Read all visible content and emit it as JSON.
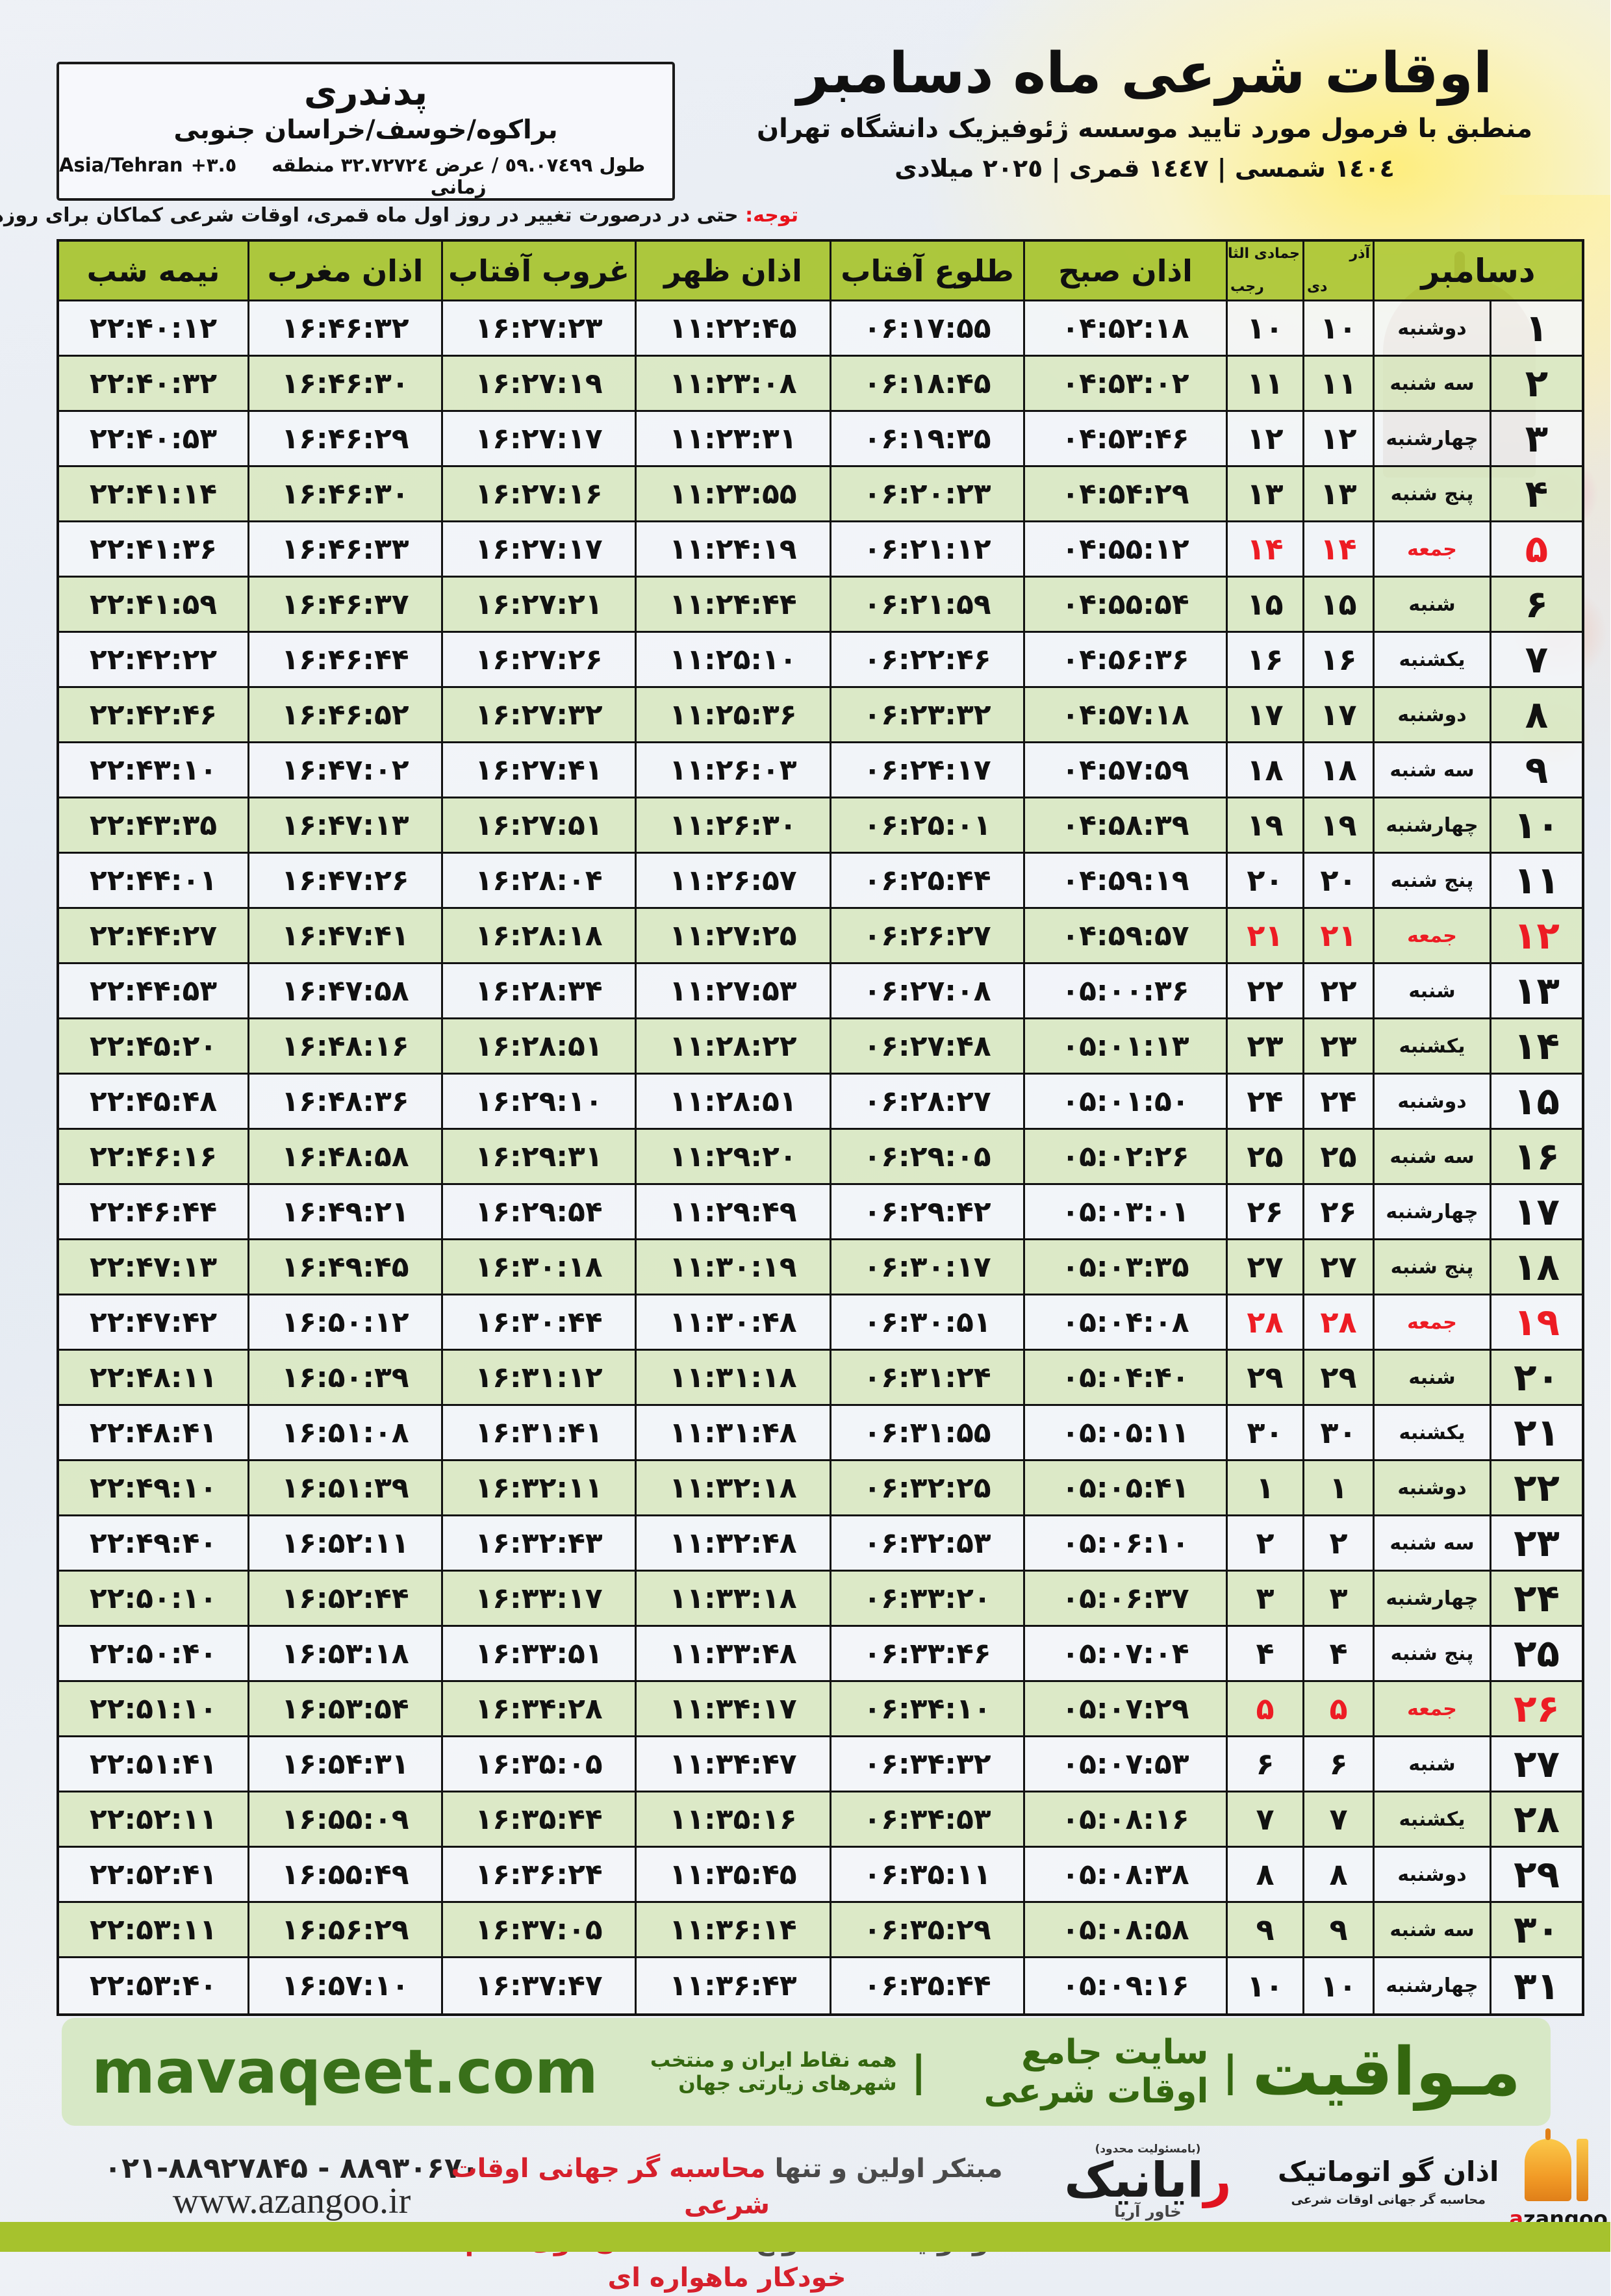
{
  "location": {
    "name": "پدندری",
    "region": "براکوه/خوسف/خراسان جنوبی",
    "coords": "طول ٥٩.٠٧٤٩٩ / عرض ٣٢.٧٢٧٢٤ منطقه زمانی",
    "tz_offset": "+٣.٥",
    "tz_name": "Asia/Tehran"
  },
  "title": {
    "main": "اوقات شرعی ماه دسامبر",
    "subtitle": "منطبق با فرمول مورد تایید موسسه ژئوفیزیک دانشگاه تهران",
    "years": "١٤٠٤ شمسی | ١٤٤٧ قمری | ٢٠٢٥ میلادی"
  },
  "notice": {
    "prefix": "توجه:",
    "text": " حتی در درصورت تغییر در روز اول ماه قمری، اوقات شرعی کماکان برای روزهای شمسی و میلادی معتبر است."
  },
  "table": {
    "columns": {
      "month": "دسامبر",
      "solar": {
        "top": "آذر",
        "bottom": "دی"
      },
      "lunar": {
        "top": "جمادی الثانی",
        "bottom": "رجب"
      },
      "sobh": "اذان صبح",
      "tolu": "طلوع آفتاب",
      "zohr": "اذان ظهر",
      "ghorub": "غروب آفتاب",
      "maghreb": "اذان مغرب",
      "nime": "نیمه شب"
    },
    "rows": [
      {
        "d": "۱",
        "wd": "دوشنبه",
        "solar": "۱۰",
        "lunar": "۱۰",
        "sobh": "۰۴:۵۲:۱۸",
        "tolu": "۰۶:۱۷:۵۵",
        "zohr": "۱۱:۲۲:۴۵",
        "ghorub": "۱۶:۲۷:۲۳",
        "maghreb": "۱۶:۴۶:۳۲",
        "nime": "۲۲:۴۰:۱۲",
        "fri": false
      },
      {
        "d": "۲",
        "wd": "سه شنبه",
        "solar": "۱۱",
        "lunar": "۱۱",
        "sobh": "۰۴:۵۳:۰۲",
        "tolu": "۰۶:۱۸:۴۵",
        "zohr": "۱۱:۲۳:۰۸",
        "ghorub": "۱۶:۲۷:۱۹",
        "maghreb": "۱۶:۴۶:۳۰",
        "nime": "۲۲:۴۰:۳۲",
        "fri": false
      },
      {
        "d": "۳",
        "wd": "چهارشنبه",
        "solar": "۱۲",
        "lunar": "۱۲",
        "sobh": "۰۴:۵۳:۴۶",
        "tolu": "۰۶:۱۹:۳۵",
        "zohr": "۱۱:۲۳:۳۱",
        "ghorub": "۱۶:۲۷:۱۷",
        "maghreb": "۱۶:۴۶:۲۹",
        "nime": "۲۲:۴۰:۵۳",
        "fri": false
      },
      {
        "d": "۴",
        "wd": "پنج شنبه",
        "solar": "۱۳",
        "lunar": "۱۳",
        "sobh": "۰۴:۵۴:۲۹",
        "tolu": "۰۶:۲۰:۲۳",
        "zohr": "۱۱:۲۳:۵۵",
        "ghorub": "۱۶:۲۷:۱۶",
        "maghreb": "۱۶:۴۶:۳۰",
        "nime": "۲۲:۴۱:۱۴",
        "fri": false
      },
      {
        "d": "۵",
        "wd": "جمعه",
        "solar": "۱۴",
        "lunar": "۱۴",
        "sobh": "۰۴:۵۵:۱۲",
        "tolu": "۰۶:۲۱:۱۲",
        "zohr": "۱۱:۲۴:۱۹",
        "ghorub": "۱۶:۲۷:۱۷",
        "maghreb": "۱۶:۴۶:۳۳",
        "nime": "۲۲:۴۱:۳۶",
        "fri": true
      },
      {
        "d": "۶",
        "wd": "شنبه",
        "solar": "۱۵",
        "lunar": "۱۵",
        "sobh": "۰۴:۵۵:۵۴",
        "tolu": "۰۶:۲۱:۵۹",
        "zohr": "۱۱:۲۴:۴۴",
        "ghorub": "۱۶:۲۷:۲۱",
        "maghreb": "۱۶:۴۶:۳۷",
        "nime": "۲۲:۴۱:۵۹",
        "fri": false
      },
      {
        "d": "۷",
        "wd": "یکشنبه",
        "solar": "۱۶",
        "lunar": "۱۶",
        "sobh": "۰۴:۵۶:۳۶",
        "tolu": "۰۶:۲۲:۴۶",
        "zohr": "۱۱:۲۵:۱۰",
        "ghorub": "۱۶:۲۷:۲۶",
        "maghreb": "۱۶:۴۶:۴۴",
        "nime": "۲۲:۴۲:۲۲",
        "fri": false
      },
      {
        "d": "۸",
        "wd": "دوشنبه",
        "solar": "۱۷",
        "lunar": "۱۷",
        "sobh": "۰۴:۵۷:۱۸",
        "tolu": "۰۶:۲۳:۳۲",
        "zohr": "۱۱:۲۵:۳۶",
        "ghorub": "۱۶:۲۷:۳۲",
        "maghreb": "۱۶:۴۶:۵۲",
        "nime": "۲۲:۴۲:۴۶",
        "fri": false
      },
      {
        "d": "۹",
        "wd": "سه شنبه",
        "solar": "۱۸",
        "lunar": "۱۸",
        "sobh": "۰۴:۵۷:۵۹",
        "tolu": "۰۶:۲۴:۱۷",
        "zohr": "۱۱:۲۶:۰۳",
        "ghorub": "۱۶:۲۷:۴۱",
        "maghreb": "۱۶:۴۷:۰۲",
        "nime": "۲۲:۴۳:۱۰",
        "fri": false
      },
      {
        "d": "۱۰",
        "wd": "چهارشنبه",
        "solar": "۱۹",
        "lunar": "۱۹",
        "sobh": "۰۴:۵۸:۳۹",
        "tolu": "۰۶:۲۵:۰۱",
        "zohr": "۱۱:۲۶:۳۰",
        "ghorub": "۱۶:۲۷:۵۱",
        "maghreb": "۱۶:۴۷:۱۳",
        "nime": "۲۲:۴۳:۳۵",
        "fri": false
      },
      {
        "d": "۱۱",
        "wd": "پنج شنبه",
        "solar": "۲۰",
        "lunar": "۲۰",
        "sobh": "۰۴:۵۹:۱۹",
        "tolu": "۰۶:۲۵:۴۴",
        "zohr": "۱۱:۲۶:۵۷",
        "ghorub": "۱۶:۲۸:۰۴",
        "maghreb": "۱۶:۴۷:۲۶",
        "nime": "۲۲:۴۴:۰۱",
        "fri": false
      },
      {
        "d": "۱۲",
        "wd": "جمعه",
        "solar": "۲۱",
        "lunar": "۲۱",
        "sobh": "۰۴:۵۹:۵۷",
        "tolu": "۰۶:۲۶:۲۷",
        "zohr": "۱۱:۲۷:۲۵",
        "ghorub": "۱۶:۲۸:۱۸",
        "maghreb": "۱۶:۴۷:۴۱",
        "nime": "۲۲:۴۴:۲۷",
        "fri": true
      },
      {
        "d": "۱۳",
        "wd": "شنبه",
        "solar": "۲۲",
        "lunar": "۲۲",
        "sobh": "۰۵:۰۰:۳۶",
        "tolu": "۰۶:۲۷:۰۸",
        "zohr": "۱۱:۲۷:۵۳",
        "ghorub": "۱۶:۲۸:۳۴",
        "maghreb": "۱۶:۴۷:۵۸",
        "nime": "۲۲:۴۴:۵۳",
        "fri": false
      },
      {
        "d": "۱۴",
        "wd": "یکشنبه",
        "solar": "۲۳",
        "lunar": "۲۳",
        "sobh": "۰۵:۰۱:۱۳",
        "tolu": "۰۶:۲۷:۴۸",
        "zohr": "۱۱:۲۸:۲۲",
        "ghorub": "۱۶:۲۸:۵۱",
        "maghreb": "۱۶:۴۸:۱۶",
        "nime": "۲۲:۴۵:۲۰",
        "fri": false
      },
      {
        "d": "۱۵",
        "wd": "دوشنبه",
        "solar": "۲۴",
        "lunar": "۲۴",
        "sobh": "۰۵:۰۱:۵۰",
        "tolu": "۰۶:۲۸:۲۷",
        "zohr": "۱۱:۲۸:۵۱",
        "ghorub": "۱۶:۲۹:۱۰",
        "maghreb": "۱۶:۴۸:۳۶",
        "nime": "۲۲:۴۵:۴۸",
        "fri": false
      },
      {
        "d": "۱۶",
        "wd": "سه شنبه",
        "solar": "۲۵",
        "lunar": "۲۵",
        "sobh": "۰۵:۰۲:۲۶",
        "tolu": "۰۶:۲۹:۰۵",
        "zohr": "۱۱:۲۹:۲۰",
        "ghorub": "۱۶:۲۹:۳۱",
        "maghreb": "۱۶:۴۸:۵۸",
        "nime": "۲۲:۴۶:۱۶",
        "fri": false
      },
      {
        "d": "۱۷",
        "wd": "چهارشنبه",
        "solar": "۲۶",
        "lunar": "۲۶",
        "sobh": "۰۵:۰۳:۰۱",
        "tolu": "۰۶:۲۹:۴۲",
        "zohr": "۱۱:۲۹:۴۹",
        "ghorub": "۱۶:۲۹:۵۴",
        "maghreb": "۱۶:۴۹:۲۱",
        "nime": "۲۲:۴۶:۴۴",
        "fri": false
      },
      {
        "d": "۱۸",
        "wd": "پنج شنبه",
        "solar": "۲۷",
        "lunar": "۲۷",
        "sobh": "۰۵:۰۳:۳۵",
        "tolu": "۰۶:۳۰:۱۷",
        "zohr": "۱۱:۳۰:۱۹",
        "ghorub": "۱۶:۳۰:۱۸",
        "maghreb": "۱۶:۴۹:۴۵",
        "nime": "۲۲:۴۷:۱۳",
        "fri": false
      },
      {
        "d": "۱۹",
        "wd": "جمعه",
        "solar": "۲۸",
        "lunar": "۲۸",
        "sobh": "۰۵:۰۴:۰۸",
        "tolu": "۰۶:۳۰:۵۱",
        "zohr": "۱۱:۳۰:۴۸",
        "ghorub": "۱۶:۳۰:۴۴",
        "maghreb": "۱۶:۵۰:۱۲",
        "nime": "۲۲:۴۷:۴۲",
        "fri": true
      },
      {
        "d": "۲۰",
        "wd": "شنبه",
        "solar": "۲۹",
        "lunar": "۲۹",
        "sobh": "۰۵:۰۴:۴۰",
        "tolu": "۰۶:۳۱:۲۴",
        "zohr": "۱۱:۳۱:۱۸",
        "ghorub": "۱۶:۳۱:۱۲",
        "maghreb": "۱۶:۵۰:۳۹",
        "nime": "۲۲:۴۸:۱۱",
        "fri": false
      },
      {
        "d": "۲۱",
        "wd": "یکشنبه",
        "solar": "۳۰",
        "lunar": "۳۰",
        "sobh": "۰۵:۰۵:۱۱",
        "tolu": "۰۶:۳۱:۵۵",
        "zohr": "۱۱:۳۱:۴۸",
        "ghorub": "۱۶:۳۱:۴۱",
        "maghreb": "۱۶:۵۱:۰۸",
        "nime": "۲۲:۴۸:۴۱",
        "fri": false
      },
      {
        "d": "۲۲",
        "wd": "دوشنبه",
        "solar": "۱",
        "lunar": "۱",
        "sobh": "۰۵:۰۵:۴۱",
        "tolu": "۰۶:۳۲:۲۵",
        "zohr": "۱۱:۳۲:۱۸",
        "ghorub": "۱۶:۳۲:۱۱",
        "maghreb": "۱۶:۵۱:۳۹",
        "nime": "۲۲:۴۹:۱۰",
        "fri": false
      },
      {
        "d": "۲۳",
        "wd": "سه شنبه",
        "solar": "۲",
        "lunar": "۲",
        "sobh": "۰۵:۰۶:۱۰",
        "tolu": "۰۶:۳۲:۵۳",
        "zohr": "۱۱:۳۲:۴۸",
        "ghorub": "۱۶:۳۲:۴۳",
        "maghreb": "۱۶:۵۲:۱۱",
        "nime": "۲۲:۴۹:۴۰",
        "fri": false
      },
      {
        "d": "۲۴",
        "wd": "چهارشنبه",
        "solar": "۳",
        "lunar": "۳",
        "sobh": "۰۵:۰۶:۳۷",
        "tolu": "۰۶:۳۳:۲۰",
        "zohr": "۱۱:۳۳:۱۸",
        "ghorub": "۱۶:۳۳:۱۷",
        "maghreb": "۱۶:۵۲:۴۴",
        "nime": "۲۲:۵۰:۱۰",
        "fri": false
      },
      {
        "d": "۲۵",
        "wd": "پنج شنبه",
        "solar": "۴",
        "lunar": "۴",
        "sobh": "۰۵:۰۷:۰۴",
        "tolu": "۰۶:۳۳:۴۶",
        "zohr": "۱۱:۳۳:۴۸",
        "ghorub": "۱۶:۳۳:۵۱",
        "maghreb": "۱۶:۵۳:۱۸",
        "nime": "۲۲:۵۰:۴۰",
        "fri": false
      },
      {
        "d": "۲۶",
        "wd": "جمعه",
        "solar": "۵",
        "lunar": "۵",
        "sobh": "۰۵:۰۷:۲۹",
        "tolu": "۰۶:۳۴:۱۰",
        "zohr": "۱۱:۳۴:۱۷",
        "ghorub": "۱۶:۳۴:۲۸",
        "maghreb": "۱۶:۵۳:۵۴",
        "nime": "۲۲:۵۱:۱۰",
        "fri": true
      },
      {
        "d": "۲۷",
        "wd": "شنبه",
        "solar": "۶",
        "lunar": "۶",
        "sobh": "۰۵:۰۷:۵۳",
        "tolu": "۰۶:۳۴:۳۲",
        "zohr": "۱۱:۳۴:۴۷",
        "ghorub": "۱۶:۳۵:۰۵",
        "maghreb": "۱۶:۵۴:۳۱",
        "nime": "۲۲:۵۱:۴۱",
        "fri": false
      },
      {
        "d": "۲۸",
        "wd": "یکشنبه",
        "solar": "۷",
        "lunar": "۷",
        "sobh": "۰۵:۰۸:۱۶",
        "tolu": "۰۶:۳۴:۵۳",
        "zohr": "۱۱:۳۵:۱۶",
        "ghorub": "۱۶:۳۵:۴۴",
        "maghreb": "۱۶:۵۵:۰۹",
        "nime": "۲۲:۵۲:۱۱",
        "fri": false
      },
      {
        "d": "۲۹",
        "wd": "دوشنبه",
        "solar": "۸",
        "lunar": "۸",
        "sobh": "۰۵:۰۸:۳۸",
        "tolu": "۰۶:۳۵:۱۱",
        "zohr": "۱۱:۳۵:۴۵",
        "ghorub": "۱۶:۳۶:۲۴",
        "maghreb": "۱۶:۵۵:۴۹",
        "nime": "۲۲:۵۲:۴۱",
        "fri": false
      },
      {
        "d": "۳۰",
        "wd": "سه شنبه",
        "solar": "۹",
        "lunar": "۹",
        "sobh": "۰۵:۰۸:۵۸",
        "tolu": "۰۶:۳۵:۲۹",
        "zohr": "۱۱:۳۶:۱۴",
        "ghorub": "۱۶:۳۷:۰۵",
        "maghreb": "۱۶:۵۶:۲۹",
        "nime": "۲۲:۵۳:۱۱",
        "fri": false
      },
      {
        "d": "۳۱",
        "wd": "چهارشنبه",
        "solar": "۱۰",
        "lunar": "۱۰",
        "sobh": "۰۵:۰۹:۱۶",
        "tolu": "۰۶:۳۵:۴۴",
        "zohr": "۱۱:۳۶:۴۳",
        "ghorub": "۱۶:۳۷:۴۷",
        "maghreb": "۱۶:۵۷:۱۰",
        "nime": "۲۲:۵۳:۴۰",
        "fri": false
      }
    ]
  },
  "brand_bar": {
    "name": "مـواقیت",
    "sep": "|",
    "tagline1": "سایت جامع اوقات شرعی",
    "tagline2": "همه نقاط ایران و منتخب شهرهای زیارتی جهان",
    "url": "mavaqeet.com"
  },
  "footer": {
    "phone": "۰۲۱-۸۸۹۲۷۸۴۵ - ۸۸۹۳۰۶۷۰",
    "website": "www.azangoo.ir",
    "line1_dark": "مبتکر اولین و تنها ",
    "line1_red": "محاسبه گر جهانی اوقات شرعی",
    "line2_dark": "و تولید کننده انواع ",
    "line2_red": "دستگاه اذان گوی تمام خودکار ماهواره ای",
    "rayanik": {
      "tiny": "(بامسئولیت محدود)",
      "name_first": "ر",
      "name_rest": "ایانیک",
      "sub": "خاور آریا"
    },
    "azangoo": {
      "name": "اذان گو اتوماتیک",
      "sub": "محاسبه گر جهانی اوقات شرعی",
      "latin_first": "a",
      "latin_rest": "zangoo"
    }
  },
  "colors": {
    "header_green": "#a6c32c",
    "row_green": "#dbe8c5",
    "row_white": "#f3f6f9",
    "friday_red": "#ed1c24",
    "brand_bar_bg": "#d7e8c6",
    "brand_green": "#34670f",
    "footer_red": "#d6202c",
    "bottom_strip": "#a6c22d"
  }
}
